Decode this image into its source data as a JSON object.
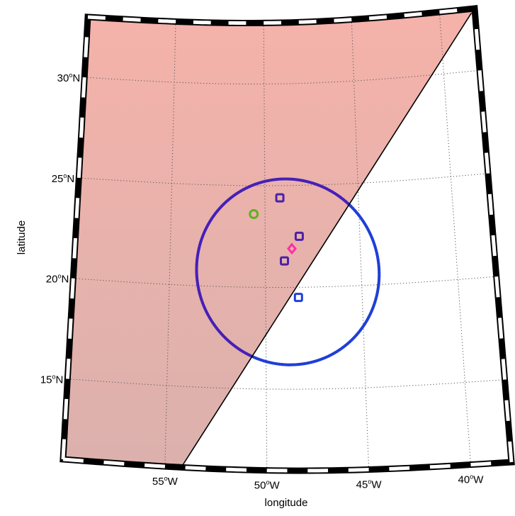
{
  "figure": {
    "x_axis_label": "longitude",
    "y_axis_label": "latitude"
  },
  "map": {
    "projection": "conic (curved graticule)",
    "lon_range": [
      -60,
      -38
    ],
    "lat_range": [
      11,
      33
    ],
    "graticule": "dotted",
    "frame": "black-and-white checkered border",
    "lat_ticks": [
      {
        "value": 30,
        "deg": "30",
        "hemi": "N"
      },
      {
        "value": 25,
        "deg": "25",
        "hemi": "N"
      },
      {
        "value": 20,
        "deg": "20",
        "hemi": "N"
      },
      {
        "value": 15,
        "deg": "15",
        "hemi": "N"
      }
    ],
    "lon_ticks": [
      {
        "value": -55,
        "deg": "55",
        "hemi": "W"
      },
      {
        "value": -50,
        "deg": "50",
        "hemi": "W"
      },
      {
        "value": -45,
        "deg": "45",
        "hemi": "W"
      },
      {
        "value": -40,
        "deg": "40",
        "hemi": "W"
      }
    ]
  },
  "overlays": {
    "shaded_region": {
      "fill": "#f6b2aa",
      "fill_bottom": "#d9b1ad",
      "side": "north-west of dividing line"
    },
    "dividing_line": {
      "from": {
        "lon": -54.2,
        "lat": 11
      },
      "to": {
        "lon": -38.2,
        "lat": 32.8
      },
      "color": "#000000"
    },
    "ellipse": {
      "center": {
        "lon": -48.9,
        "lat": 20.9
      },
      "color_outside": "#1f3fd8",
      "color_inside_shade": "#4520b8"
    }
  },
  "markers": [
    {
      "lon": -49.2,
      "lat": 24.4,
      "symbol": "square",
      "color": "#4a22a8"
    },
    {
      "lon": -48.2,
      "lat": 22.5,
      "symbol": "square",
      "color": "#4a22a8"
    },
    {
      "lon": -49.0,
      "lat": 21.3,
      "symbol": "square",
      "color": "#4a22a8"
    },
    {
      "lon": -48.3,
      "lat": 19.5,
      "symbol": "square",
      "color": "#1f3fd8"
    },
    {
      "lon": -50.6,
      "lat": 23.6,
      "symbol": "circle",
      "color": "#5fb020"
    },
    {
      "lon": -48.6,
      "lat": 21.9,
      "symbol": "diamond",
      "color": "#ff2fa6"
    }
  ]
}
